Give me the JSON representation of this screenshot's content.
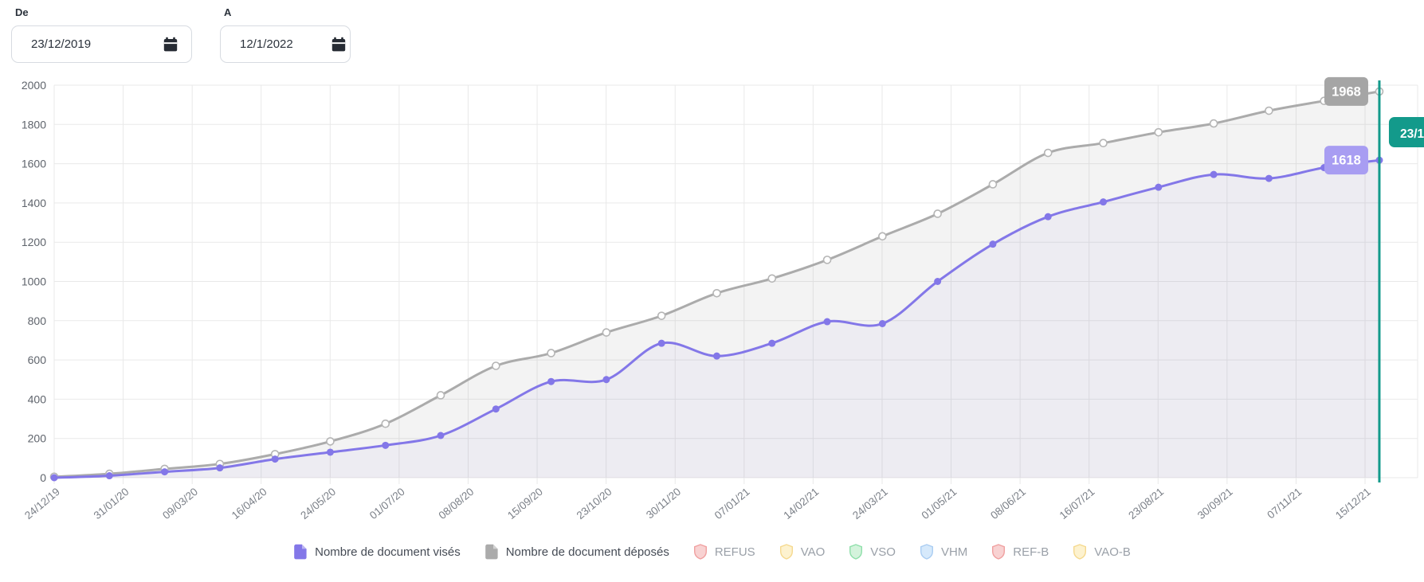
{
  "filters": {
    "from": {
      "label": "De",
      "value": "23/12/2019"
    },
    "to": {
      "label": "A",
      "value": "12/1/2022"
    }
  },
  "chart_data": {
    "type": "line",
    "title": "",
    "xlabel": "",
    "ylabel": "",
    "ylim": [
      0,
      2000
    ],
    "grid": true,
    "legend_position": "bottom",
    "x_tick_labels": [
      "24/12/19",
      "31/01/20",
      "09/03/20",
      "16/04/20",
      "24/05/20",
      "01/07/20",
      "08/08/20",
      "15/09/20",
      "23/10/20",
      "30/11/20",
      "07/01/21",
      "14/02/21",
      "24/03/21",
      "01/05/21",
      "08/06/21",
      "16/07/21",
      "23/08/21",
      "30/09/21",
      "07/11/21",
      "15/12/21"
    ],
    "y_ticks": [
      0,
      200,
      400,
      600,
      800,
      1000,
      1200,
      1400,
      1600,
      1800,
      2000
    ],
    "series": [
      {
        "name": "Nombre de document visés",
        "color": "#8377e8",
        "fill": "rgba(131,119,232,0.05)",
        "point_style": "filled",
        "end_label": "1618",
        "badge_color": "#a89df2",
        "values": [
          0,
          10,
          30,
          50,
          95,
          130,
          165,
          215,
          350,
          490,
          500,
          685,
          620,
          685,
          795,
          785,
          1000,
          1190,
          1330,
          1405,
          1480,
          1545,
          1525,
          1580,
          1618
        ]
      },
      {
        "name": "Nombre de document déposés",
        "color": "#ababab",
        "fill": "rgba(160,160,160,0.12)",
        "point_style": "open",
        "end_label": "1968",
        "badge_color": "#a5a5a5",
        "values": [
          5,
          20,
          45,
          70,
          120,
          185,
          275,
          420,
          570,
          635,
          740,
          825,
          940,
          1015,
          1110,
          1230,
          1345,
          1495,
          1655,
          1705,
          1760,
          1805,
          1870,
          1920,
          1968
        ]
      }
    ],
    "cursor": {
      "label": "23/1",
      "color": "#139a8b"
    },
    "status_legend": [
      {
        "label": "REFUS",
        "fill": "#f8d2d2",
        "stroke": "#f0a0a0"
      },
      {
        "label": "VAO",
        "fill": "#fdf2cf",
        "stroke": "#f5d98f"
      },
      {
        "label": "VSO",
        "fill": "#d4f3dc",
        "stroke": "#8fdfaa"
      },
      {
        "label": "VHM",
        "fill": "#d6e9fb",
        "stroke": "#aacdf2"
      },
      {
        "label": "REF-B",
        "fill": "#f8d2d2",
        "stroke": "#f0a0a0"
      },
      {
        "label": "VAO-B",
        "fill": "#fdf2cf",
        "stroke": "#f5d98f"
      }
    ],
    "colors": {
      "grid": "#e9e9e9",
      "y_tick_text": "#5f646c",
      "x_tick_text": "#7a7f87"
    }
  }
}
